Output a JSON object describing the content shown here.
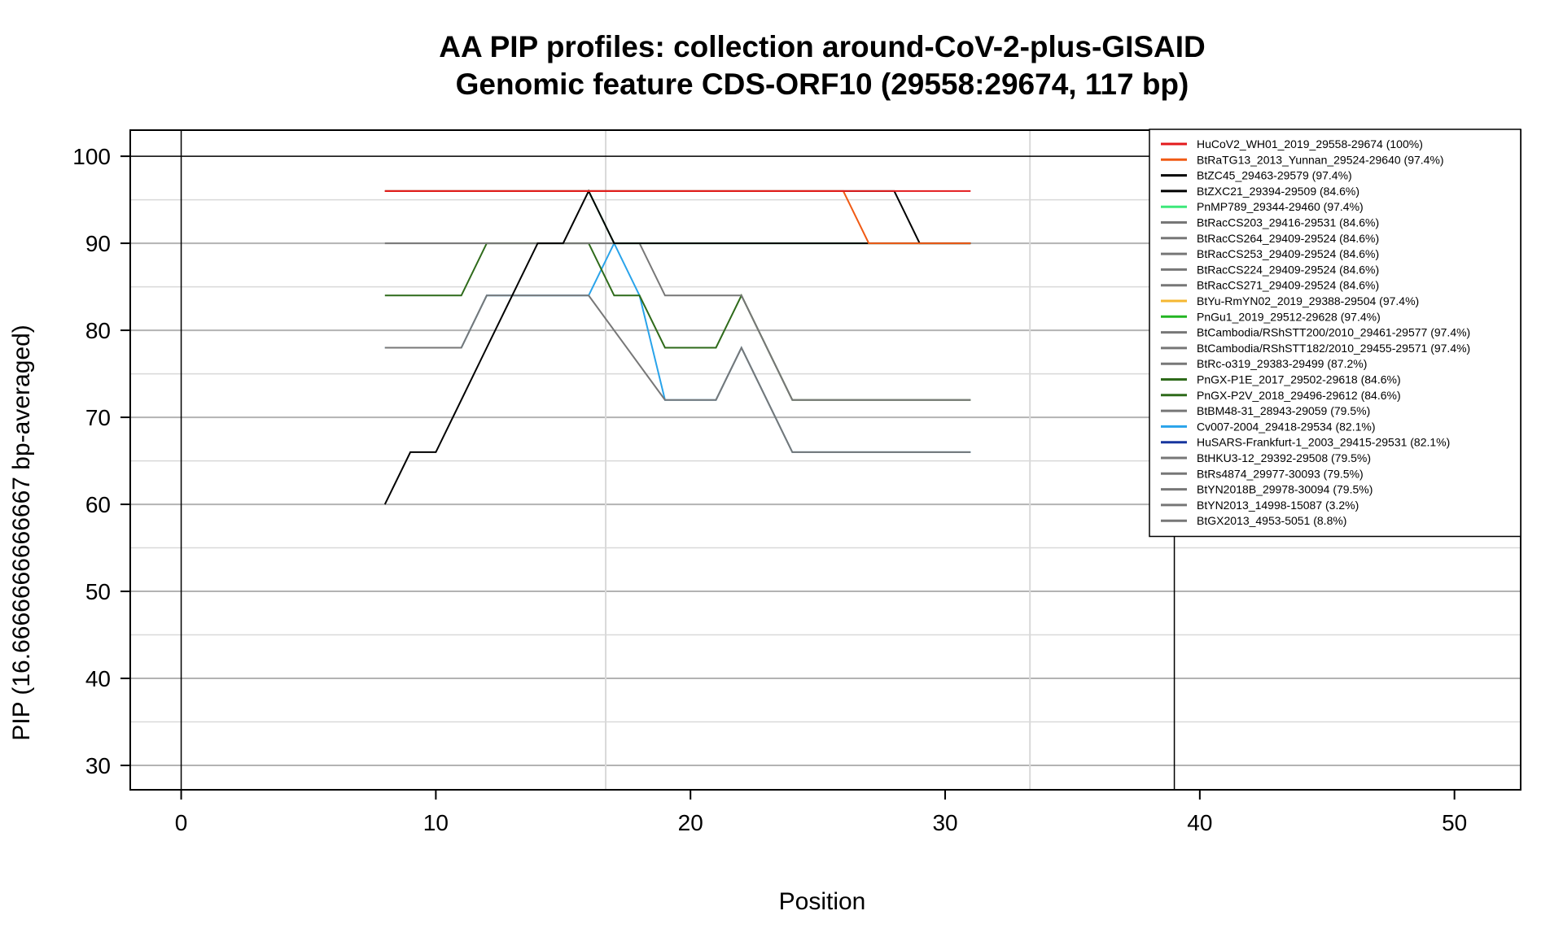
{
  "chart_data": {
    "type": "line",
    "title": "AA PIP profiles: collection around-CoV-2-plus-GISAID",
    "subtitle": "Genomic feature CDS-ORF10 (29558:29674, 117 bp)",
    "xlabel": "Position",
    "ylabel": "PIP (16.6666666666667 bp-averaged)",
    "xlim": [
      -2,
      52.6
    ],
    "ylim": [
      27.2,
      103
    ],
    "x_ticks": [
      0,
      10,
      20,
      30,
      40,
      50
    ],
    "y_ticks": [
      30,
      40,
      50,
      60,
      70,
      80,
      90,
      100
    ],
    "x_grid": [
      16.67,
      33.33
    ],
    "y_grid_major": [
      30,
      40,
      50,
      60,
      70,
      80,
      90
    ],
    "y_grid_minor": [
      35,
      45,
      55,
      65,
      75,
      85,
      95
    ],
    "y_reference_line": 100,
    "x_reference_lines": [
      0,
      39
    ],
    "grid": true,
    "legend_position": "top-right",
    "series": [
      {
        "name": "HuCoV2_WH01_2019_29558-29674 (100%)",
        "color": "#e31a1c",
        "points": [
          [
            8,
            96
          ],
          [
            31,
            96
          ]
        ]
      },
      {
        "name": "BtRaTG13_2013_Yunnan_29524-29640 (97.4%)",
        "color": "#f05a14",
        "points": [
          [
            8,
            96
          ],
          [
            26,
            96
          ],
          [
            27,
            90
          ],
          [
            31,
            90
          ]
        ]
      },
      {
        "name": "BtZC45_29463-29579 (97.4%)",
        "color": "#000000",
        "points": [
          [
            8,
            96
          ],
          [
            28,
            96
          ],
          [
            29,
            90
          ],
          [
            31,
            90
          ]
        ]
      },
      {
        "name": "BtZXC21_29394-29509 (84.6%)",
        "color": "#000000",
        "points": [
          [
            8,
            60
          ],
          [
            9,
            66
          ],
          [
            10,
            66
          ],
          [
            11,
            72
          ],
          [
            12,
            78
          ],
          [
            13,
            84
          ],
          [
            14,
            90
          ],
          [
            15,
            90
          ],
          [
            16,
            96
          ],
          [
            17,
            90
          ],
          [
            31,
            90
          ]
        ]
      },
      {
        "name": "PnMP789_29344-29460 (97.4%)",
        "color": "#3de87a",
        "points": [
          [
            16,
            96
          ],
          [
            17,
            90
          ],
          [
            31,
            90
          ]
        ]
      },
      {
        "name": "BtRacCS203_29416-29531 (84.6%)",
        "color": "#777777",
        "points": [
          [
            8,
            90
          ],
          [
            17,
            90
          ],
          [
            18,
            90
          ],
          [
            19,
            84
          ],
          [
            22,
            84
          ],
          [
            24,
            72
          ],
          [
            31,
            72
          ]
        ]
      },
      {
        "name": "BtRacCS264_29409-29524 (84.6%)",
        "color": "#777777",
        "points": [
          [
            8,
            78
          ],
          [
            11,
            78
          ],
          [
            12,
            84
          ],
          [
            16,
            84
          ],
          [
            19,
            72
          ],
          [
            21,
            72
          ],
          [
            22,
            78
          ],
          [
            24,
            66
          ],
          [
            31,
            66
          ]
        ]
      },
      {
        "name": "BtRacCS253_29409-29524 (84.6%)",
        "color": "#777777",
        "points": []
      },
      {
        "name": "BtRacCS224_29409-29524 (84.6%)",
        "color": "#777777",
        "points": []
      },
      {
        "name": "BtRacCS271_29409-29524 (84.6%)",
        "color": "#777777",
        "points": []
      },
      {
        "name": "BtYu-RmYN02_2019_29388-29504 (97.4%)",
        "color": "#f5b731",
        "points": []
      },
      {
        "name": "PnGu1_2019_29512-29628 (97.4%)",
        "color": "#22b522",
        "points": []
      },
      {
        "name": "BtCambodia/RShSTT200/2010_29461-29577 (97.4%)",
        "color": "#777777",
        "points": []
      },
      {
        "name": "BtCambodia/RShSTT182/2010_29455-29571 (97.4%)",
        "color": "#777777",
        "points": []
      },
      {
        "name": "BtRc-o319_29383-29499 (87.2%)",
        "color": "#777777",
        "points": []
      },
      {
        "name": "PnGX-P1E_2017_29502-29618 (84.6%)",
        "color": "#2e6a1a",
        "points": [
          [
            8,
            84
          ],
          [
            11,
            84
          ],
          [
            12,
            90
          ],
          [
            16,
            90
          ],
          [
            17,
            84
          ],
          [
            18,
            84
          ],
          [
            19,
            78
          ],
          [
            21,
            78
          ],
          [
            22,
            84
          ],
          [
            24,
            72
          ],
          [
            31,
            72
          ]
        ]
      },
      {
        "name": "PnGX-P2V_2018_29496-29612 (84.6%)",
        "color": "#2e6a1a",
        "points": []
      },
      {
        "name": "BtBM48-31_28943-29059 (79.5%)",
        "color": "#777777",
        "points": []
      },
      {
        "name": "Cv007-2004_29418-29534 (82.1%)",
        "color": "#29a3ea",
        "points": [
          [
            8,
            78
          ],
          [
            11,
            78
          ],
          [
            12,
            84
          ],
          [
            16,
            84
          ],
          [
            17,
            90
          ],
          [
            18,
            84
          ],
          [
            19,
            72
          ],
          [
            21,
            72
          ],
          [
            22,
            78
          ],
          [
            24,
            66
          ],
          [
            31,
            66
          ]
        ]
      },
      {
        "name": "HuSARS-Frankfurt-1_2003_29415-29531 (82.1%)",
        "color": "#17359e",
        "points": []
      },
      {
        "name": "BtHKU3-12_29392-29508 (79.5%)",
        "color": "#777777",
        "points": []
      },
      {
        "name": "BtRs4874_29977-30093 (79.5%)",
        "color": "#777777",
        "points": []
      },
      {
        "name": "BtYN2018B_29978-30094 (79.5%)",
        "color": "#777777",
        "points": []
      },
      {
        "name": "BtYN2013_14998-15087 (3.2%)",
        "color": "#777777",
        "points": []
      },
      {
        "name": "BtGX2013_4953-5051 (8.8%)",
        "color": "#777777",
        "points": []
      }
    ]
  }
}
